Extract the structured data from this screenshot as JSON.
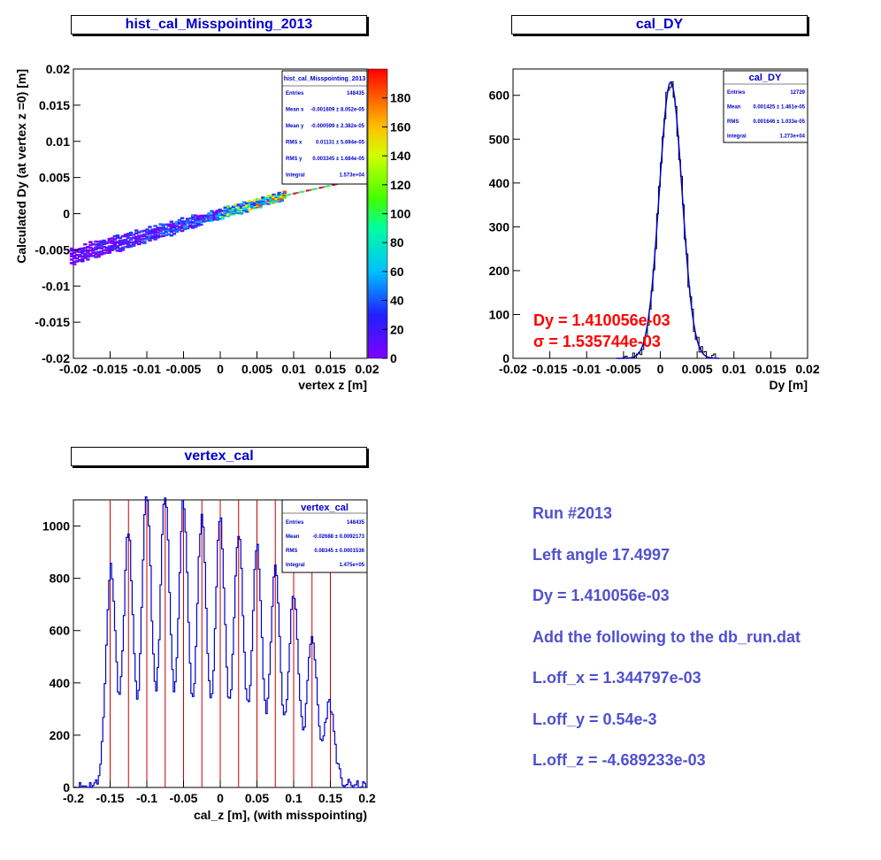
{
  "panels": {
    "misspointing": {
      "title": "hist_cal_Misspointing_2013",
      "stats": {
        "title": "hist_cal_Misspointing_2013",
        "rows": [
          {
            "key": "Entries",
            "val": "148435"
          },
          {
            "key": "Mean x",
            "val": "-0.001609 ±  8.052e-05"
          },
          {
            "key": "Mean y",
            "val": "-0.000599 ±  2.382e-05"
          },
          {
            "key": "RMS x",
            "val": "0.01131 ±  5.694e-05"
          },
          {
            "key": "RMS y",
            "val": "0.003345 ±  1.684e-05"
          },
          {
            "key": "Integral",
            "val": "1.573e+04"
          }
        ]
      }
    },
    "cal_dy": {
      "title": "cal_DY",
      "stats": {
        "title": "cal_DY",
        "rows": [
          {
            "key": "Entries",
            "val": "12729"
          },
          {
            "key": "Mean",
            "val": "0.001425 ±  1.461e-05"
          },
          {
            "key": "RMS",
            "val": "0.001646 ±  1.033e-05"
          },
          {
            "key": "Integral",
            "val": "1.273e+04"
          }
        ]
      },
      "fit_labels": [
        "Dy = 1.410056e-03",
        "σ = 1.535744e-03"
      ]
    },
    "vertex_cal": {
      "title": "vertex_cal",
      "stats": {
        "title": "vertex_cal",
        "rows": [
          {
            "key": "Entries",
            "val": "148435"
          },
          {
            "key": "Mean",
            "val": "-0.02688 ±  0.0092173"
          },
          {
            "key": "RMS",
            "val": "0.08345 ±  0.0001536"
          },
          {
            "key": "Integral",
            "val": "1.475e+05"
          }
        ]
      }
    }
  },
  "notes": [
    "Run #2013",
    "Left angle 17.4997",
    "Dy = 1.410056e-03",
    "Add the following to the db_run.dat",
    "L.off_x = 1.344797e-03",
    "L.off_y = 0.54e-3",
    "L.off_z = -4.689233e-03"
  ],
  "colors": {
    "title_text": "#0000cc",
    "fit_text": "#ff0000",
    "hist_line": "#0000cc",
    "marker_line": "#cc0000",
    "notes_text": "#5050d0"
  },
  "chart_data": [
    {
      "type": "heatmap",
      "title": "hist_cal_Misspointing_2013",
      "xlabel": "vertex z [m]",
      "ylabel": "Calculated Dy (at vertex z =0) [m]",
      "xlim": [
        -0.02,
        0.02
      ],
      "ylim": [
        -0.02,
        0.02
      ],
      "xticks": [
        "-0.02",
        "-0.015",
        "-0.01",
        "-0.005",
        "0",
        "0.005",
        "0.01",
        "0.015",
        "0.02"
      ],
      "yticks": [
        "-0.02",
        "-0.015",
        "-0.01",
        "-0.005",
        "0",
        "0.005",
        "0.01",
        "0.015",
        "0.02"
      ],
      "zlim": [
        0,
        200
      ],
      "zticks": [
        "0",
        "20",
        "40",
        "60",
        "80",
        "100",
        "120",
        "140",
        "160",
        "180"
      ],
      "band": {
        "x_start": -0.0205,
        "y_start": -0.0058,
        "x_end": 0.0085,
        "y_end": 0.0026,
        "extra_x_end": 0.017,
        "extra_y_end": 0.0045
      }
    },
    {
      "type": "bar",
      "title": "cal_DY",
      "xlabel": "Dy [m]",
      "xlim": [
        -0.02,
        0.02
      ],
      "ylim": [
        0,
        660
      ],
      "xticks": [
        "-0.02",
        "-0.015",
        "-0.01",
        "-0.005",
        "0",
        "0.005",
        "0.01",
        "0.015",
        "0.02"
      ],
      "yticks": [
        "0",
        "100",
        "200",
        "300",
        "400",
        "500",
        "600"
      ],
      "series": [
        {
          "peak": 630,
          "mean": 0.00141,
          "sigma": 0.00154
        }
      ]
    },
    {
      "type": "bar",
      "title": "vertex_cal",
      "xlabel": "cal_z [m], (with misspointing)",
      "xlim": [
        -0.2,
        0.2
      ],
      "ylim": [
        0,
        1100
      ],
      "xticks": [
        "-0.2",
        "-0.15",
        "-0.1",
        "-0.05",
        "0",
        "0.05",
        "0.1",
        "0.15",
        "0.2"
      ],
      "yticks": [
        "0",
        "200",
        "400",
        "600",
        "800",
        "1000"
      ],
      "peaks_x": [
        -0.1488,
        -0.1251,
        -0.1001,
        -0.0751,
        -0.0501,
        -0.0251,
        0.0,
        0.0251,
        0.0501,
        0.0751,
        0.1001,
        0.1251,
        0.1488
      ],
      "peaks_y": [
        820,
        950,
        1100,
        1100,
        1070,
        1000,
        1000,
        950,
        900,
        820,
        720,
        560,
        300
      ],
      "markers_x": [
        -0.15,
        -0.125,
        -0.1,
        -0.075,
        -0.05,
        -0.025,
        0.0,
        0.025,
        0.05,
        0.075,
        0.1,
        0.125,
        0.15
      ]
    }
  ]
}
